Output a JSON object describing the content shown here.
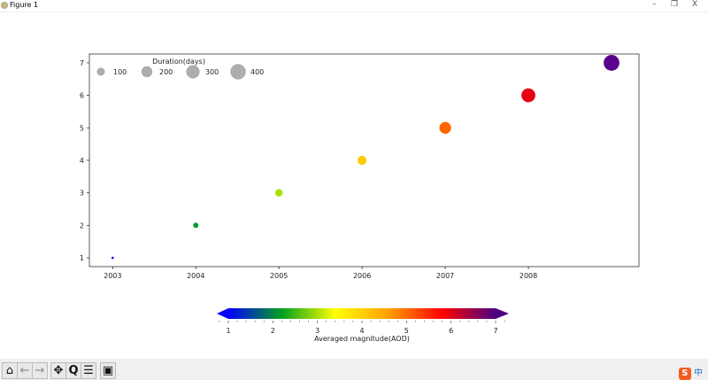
{
  "window": {
    "title": "Figure 1",
    "minimize": "–",
    "restore": "❐",
    "close": "X"
  },
  "chart_data": {
    "type": "scatter",
    "x": [
      2003,
      2004,
      2005,
      2006,
      2007,
      2008,
      2009
    ],
    "y": [
      1,
      2,
      3,
      4,
      5,
      6,
      7
    ],
    "color_values": [
      1,
      2,
      3,
      4,
      5,
      6,
      7
    ],
    "duration_days": [
      10,
      50,
      100,
      150,
      250,
      350,
      450
    ],
    "point_colors": [
      "#0000ff",
      "#009a2e",
      "#a8e000",
      "#ffcc00",
      "#ff6600",
      "#e60012",
      "#5a0090"
    ],
    "xticks": [
      "2003",
      "2004",
      "2005",
      "2006",
      "2007",
      "2008"
    ],
    "yticks": [
      "1",
      "2",
      "3",
      "4",
      "5",
      "6",
      "7"
    ],
    "xlim": [
      2002.72,
      2009.33
    ],
    "ylim": [
      0.73,
      7.27
    ],
    "grid": false,
    "legend": {
      "title": "Duration(days)",
      "placement": "top-left",
      "entries": [
        "100",
        "200",
        "300",
        "400"
      ],
      "values": [
        100,
        200,
        300,
        400
      ],
      "color": "#a0a0a0"
    },
    "colorbar": {
      "label": "Averaged magnitude(AOD)",
      "ticks": [
        "1",
        "2",
        "3",
        "4",
        "5",
        "6",
        "7"
      ],
      "range": [
        1,
        7
      ],
      "extend": "both",
      "orientation": "horizontal",
      "colors": [
        "#0000ff",
        "#00a020",
        "#ffff00",
        "#ffa000",
        "#ff0000",
        "#4b0082"
      ]
    }
  },
  "toolbar": {
    "home": "home-icon",
    "back": "back-icon",
    "forward": "forward-icon",
    "pan": "pan-icon",
    "zoom": "zoom-icon",
    "configure": "configure-icon",
    "save": "save-icon"
  },
  "ime": {
    "logo": "S",
    "label": "中"
  }
}
